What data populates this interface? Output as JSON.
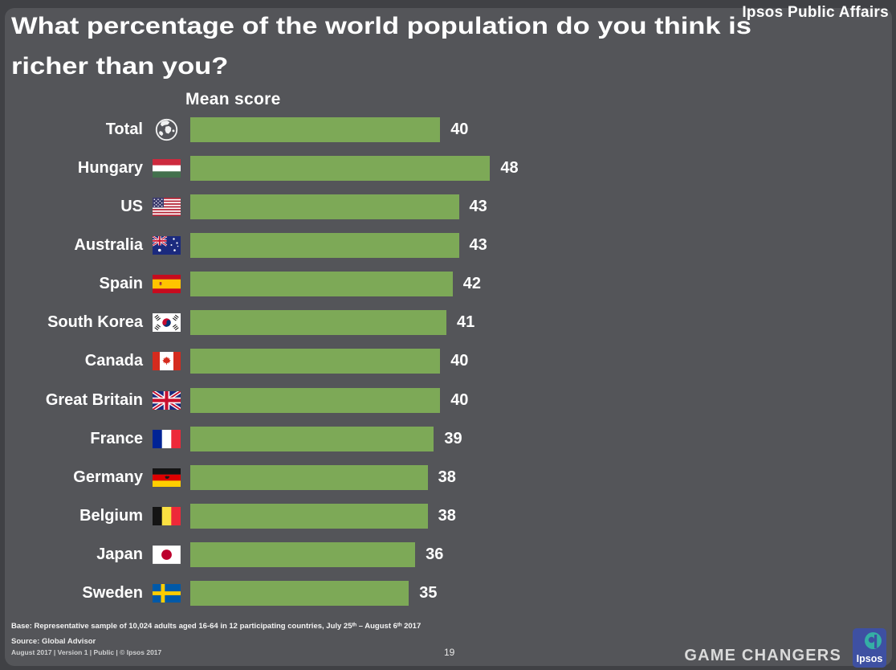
{
  "header": {
    "brand": "Ipsos Public Affairs",
    "title": "What percentage of the world population do you think is richer than you?"
  },
  "chart_data": {
    "type": "bar",
    "orientation": "horizontal",
    "title": "What percentage of the world population do you think is richer than you?",
    "value_axis_label": "Mean score",
    "categories": [
      "Total",
      "Hungary",
      "US",
      "Australia",
      "Spain",
      "South Korea",
      "Canada",
      "Great Britain",
      "France",
      "Germany",
      "Belgium",
      "Japan",
      "Sweden"
    ],
    "values": [
      40,
      48,
      43,
      43,
      42,
      41,
      40,
      40,
      39,
      38,
      38,
      36,
      35
    ],
    "icons": [
      "globe",
      "flag-hungary",
      "flag-us",
      "flag-australia",
      "flag-spain",
      "flag-south-korea",
      "flag-canada",
      "flag-great-britain",
      "flag-france",
      "flag-germany",
      "flag-belgium",
      "flag-japan",
      "flag-sweden"
    ],
    "bar_color": "#7DA957",
    "xlim": [
      0,
      60
    ],
    "grid": false,
    "legend": false
  },
  "footer": {
    "base_note": "Base: Representative sample of 10,024 adults aged 16-64 in 12 participating countries, July 25ᵗʰ – August 6ᵗʰ 2017",
    "source_note": "Source: Global Advisor",
    "version_note": "August 2017 |  Version 1  |  Public  |  © Ipsos 2017",
    "page_number": "19",
    "tagline": "GAME CHANGERS",
    "logo_text": "Ipsos"
  }
}
